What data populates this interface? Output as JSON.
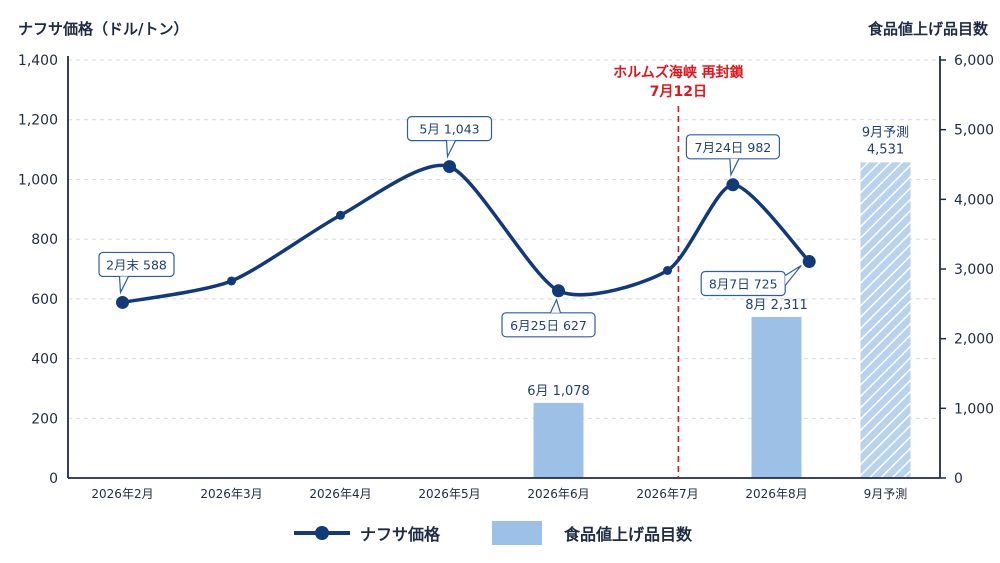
{
  "chart_data": {
    "type": "line+bar",
    "left_axis_title": "ナフサ価格（ドル/トン）",
    "right_axis_title": "食品値上げ品目数",
    "categories": [
      "2026年2月",
      "2026年3月",
      "2026年4月",
      "2026年5月",
      "2026年6月",
      "2026年7月",
      "2026年8月",
      "9月予測"
    ],
    "left_ylim": [
      0,
      1400
    ],
    "left_ticks": [
      "0",
      "200",
      "400",
      "600",
      "800",
      "1,000",
      "1,200",
      "1,400"
    ],
    "right_ylim": [
      0,
      6000
    ],
    "right_ticks": [
      "0",
      "1,000",
      "2,000",
      "3,000",
      "4,000",
      "5,000",
      "6,000"
    ],
    "grid": "horizontal dashed",
    "line_series": {
      "name": "ナフサ価格",
      "color": "#123a78",
      "points": [
        {
          "x": 0.0,
          "y": 588
        },
        {
          "x": 1.0,
          "y": 660
        },
        {
          "x": 2.0,
          "y": 880
        },
        {
          "x": 3.0,
          "y": 1043
        },
        {
          "x": 4.0,
          "y": 627
        },
        {
          "x": 5.0,
          "y": 695
        },
        {
          "x": 5.6,
          "y": 982
        },
        {
          "x": 6.3,
          "y": 725
        }
      ]
    },
    "bar_series": {
      "name": "食品値上げ品目数",
      "color": "#9dc0e6",
      "bars": [
        {
          "category_index": 4,
          "value": 1078,
          "label": "6月 1,078",
          "forecast": false
        },
        {
          "category_index": 6,
          "value": 2311,
          "label": "8月 2,311",
          "forecast": false
        },
        {
          "category_index": 7,
          "value": 4531,
          "label_line1": "9月予測",
          "label_line2": "4,531",
          "forecast": true
        }
      ]
    },
    "annotations": [
      {
        "point_index": 0,
        "text": "2月末 588",
        "position": "above"
      },
      {
        "point_index": 3,
        "text": "5月 1,043",
        "position": "above"
      },
      {
        "point_index": 4,
        "text": "6月25日 627",
        "position": "below"
      },
      {
        "point_index": 6,
        "text": "7月24日 982",
        "position": "above"
      },
      {
        "point_index": 7,
        "text": "8月7日 725",
        "position": "left"
      }
    ],
    "event": {
      "x": 5.1,
      "line1": "ホルムズ海峡 再封鎖",
      "line2": "7月12日",
      "color": "#e0161d"
    }
  },
  "legend": {
    "line_label": "ナフサ価格",
    "bar_label": "食品値上げ品目数"
  }
}
